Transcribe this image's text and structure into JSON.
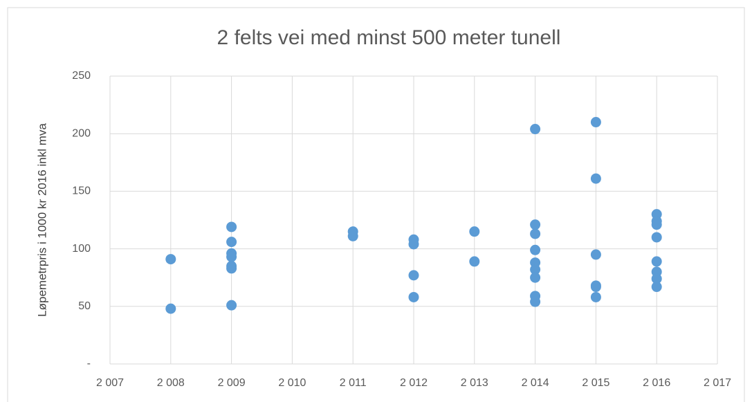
{
  "chart_data": {
    "type": "scatter",
    "title": "2 felts vei med minst 500 meter tunell",
    "y_label": "Løpemetrpris i 1000 kr 2016 inkl mva",
    "color": "#5b9bd5",
    "grid": true,
    "x": [
      2008,
      2008,
      2009,
      2009,
      2009,
      2009,
      2009,
      2009,
      2009,
      2011,
      2011,
      2012,
      2012,
      2012,
      2012,
      2013,
      2013,
      2014,
      2014,
      2014,
      2014,
      2014,
      2014,
      2014,
      2014,
      2014,
      2015,
      2015,
      2015,
      2015,
      2015,
      2015,
      2016,
      2016,
      2016,
      2016,
      2016,
      2016,
      2016,
      2016
    ],
    "values": [
      91,
      48,
      119,
      106,
      96,
      93,
      85,
      83,
      51,
      115,
      111,
      108,
      104,
      77,
      58,
      115,
      89,
      204,
      121,
      113,
      99,
      88,
      82,
      75,
      59,
      54,
      210,
      161,
      95,
      68,
      67,
      58,
      130,
      124,
      121,
      110,
      89,
      80,
      74,
      67
    ],
    "xlim": [
      2007,
      2017
    ],
    "xticks": [
      {
        "value": 2007,
        "label": "2 007"
      },
      {
        "value": 2008,
        "label": "2 008"
      },
      {
        "value": 2009,
        "label": "2 009"
      },
      {
        "value": 2010,
        "label": "2 010"
      },
      {
        "value": 2011,
        "label": "2 011"
      },
      {
        "value": 2012,
        "label": "2 012"
      },
      {
        "value": 2013,
        "label": "2 013"
      },
      {
        "value": 2014,
        "label": "2 014"
      },
      {
        "value": 2015,
        "label": "2 015"
      },
      {
        "value": 2016,
        "label": "2 016"
      },
      {
        "value": 2017,
        "label": "2 017"
      }
    ],
    "ylim": [
      0,
      250
    ],
    "yticks": [
      {
        "value": 0,
        "label": "-"
      },
      50,
      100,
      150,
      200,
      250
    ]
  }
}
